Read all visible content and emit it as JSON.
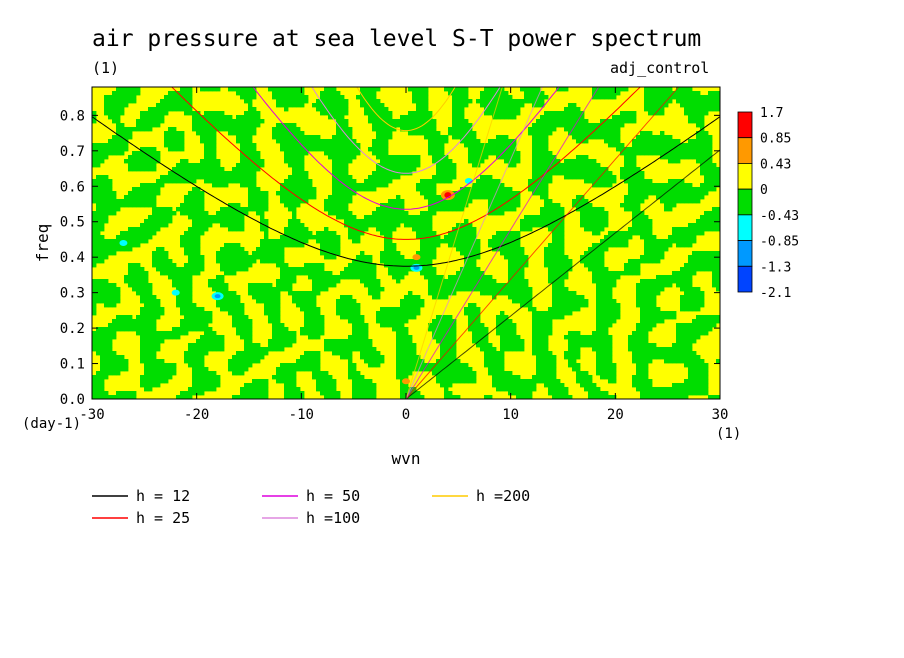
{
  "chart_data": {
    "type": "heatmap",
    "title": "air pressure at sea level S-T power spectrum",
    "subtitle": "(1)",
    "case_label": "adj_control",
    "xlabel": "wvn",
    "ylabel": "freq",
    "x_unit": "(1)",
    "y_unit": "(day-1)",
    "xlim": [
      -30,
      30
    ],
    "ylim": [
      0.0,
      0.88
    ],
    "x_ticks": [
      "-30",
      "-20",
      "-10",
      "0",
      "10",
      "20",
      "30"
    ],
    "y_ticks": [
      "0.0",
      "0.1",
      "0.2",
      "0.3",
      "0.4",
      "0.5",
      "0.6",
      "0.7",
      "0.8"
    ],
    "colorbar": {
      "labels": [
        "1.7",
        "0.85",
        "0.43",
        "0",
        "-0.43",
        "-0.85",
        "-1.3",
        "-2.1"
      ],
      "colors": [
        "#ff0000",
        "#ff9900",
        "#ffff00",
        "#00dd00",
        "#00ffff",
        "#0099ff",
        "#0044ff"
      ]
    },
    "dominant_field": "alternating yellow (0 to 0.43) and green (-0.43 to 0) noise over the full domain, with a few isolated extremes",
    "extremes": [
      {
        "wvn": 4,
        "freq": 0.575,
        "level": "1.7"
      },
      {
        "wvn": 1,
        "freq": 0.37,
        "level": "-0.85"
      },
      {
        "wvn": -18,
        "freq": 0.29,
        "level": "-0.85"
      },
      {
        "wvn": -22,
        "freq": 0.3,
        "level": "-0.43"
      },
      {
        "wvn": -27,
        "freq": 0.44,
        "level": "-0.43"
      },
      {
        "wvn": 6,
        "freq": 0.615,
        "level": "-0.43"
      },
      {
        "wvn": 0,
        "freq": 0.05,
        "level": "0.43"
      },
      {
        "wvn": 1,
        "freq": 0.4,
        "level": "0.43"
      }
    ],
    "series": [
      {
        "name": "h = 12",
        "color": "#000000"
      },
      {
        "name": "h = 25",
        "color": "#ff0000"
      },
      {
        "name": "h = 50",
        "color": "#dd00dd"
      },
      {
        "name": "h =100",
        "color": "#dd88dd"
      },
      {
        "name": "h =200",
        "color": "#ffcc00"
      }
    ]
  }
}
